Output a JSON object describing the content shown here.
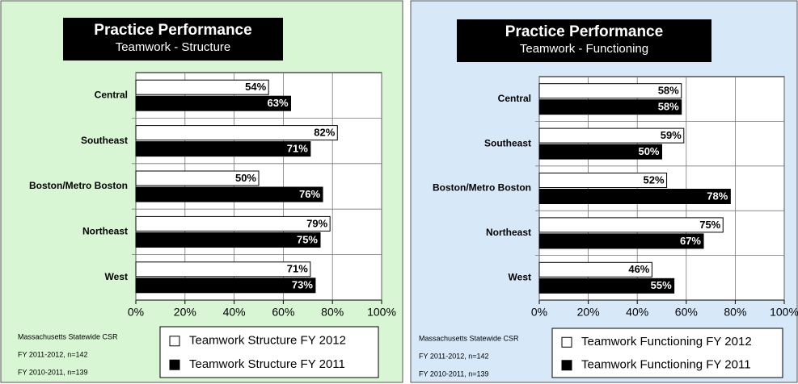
{
  "chart_data": [
    {
      "type": "hbar",
      "title": "Practice Performance",
      "subtitle": "Teamwork - Structure",
      "categories": [
        "Central",
        "Southeast",
        "Boston/Metro Boston",
        "Northeast",
        "West"
      ],
      "series": [
        {
          "name": "Teamwork Structure FY 2012",
          "color": "#ffffff",
          "values": [
            54,
            82,
            50,
            79,
            71
          ],
          "value_labels": [
            "54%",
            "82%",
            "50%",
            "79%",
            "71%"
          ]
        },
        {
          "name": "Teamwork Structure FY 2011",
          "color": "#000000",
          "values": [
            63,
            71,
            76,
            75,
            73
          ],
          "value_labels": [
            "63%",
            "71%",
            "76%",
            "75%",
            "73%"
          ]
        }
      ],
      "xlim": [
        0,
        100
      ],
      "xticks": [
        {
          "value": 0,
          "label": "0%"
        },
        {
          "value": 20,
          "label": "20%"
        },
        {
          "value": 40,
          "label": "40%"
        },
        {
          "value": 60,
          "label": "60%"
        },
        {
          "value": 80,
          "label": "80%"
        },
        {
          "value": 100,
          "label": "100%"
        }
      ],
      "grid": true,
      "background": "#d8f5d4",
      "notes": [
        "Massachusetts Statewide CSR",
        "FY 2011-2012, n=142",
        "FY 2010-2011, n=139"
      ]
    },
    {
      "type": "hbar",
      "title": "Practice Performance",
      "subtitle": "Teamwork - Functioning",
      "categories": [
        "Central",
        "Southeast",
        "Boston/Metro Boston",
        "Northeast",
        "West"
      ],
      "series": [
        {
          "name": "Teamwork Functioning FY 2012",
          "color": "#ffffff",
          "values": [
            58,
            59,
            52,
            75,
            46
          ],
          "value_labels": [
            "58%",
            "59%",
            "52%",
            "75%",
            "46%"
          ]
        },
        {
          "name": "Teamwork Functioning FY 2011",
          "color": "#000000",
          "values": [
            58,
            50,
            78,
            67,
            55
          ],
          "value_labels": [
            "58%",
            "50%",
            "78%",
            "67%",
            "55%"
          ]
        }
      ],
      "xlim": [
        0,
        100
      ],
      "xticks": [
        {
          "value": 0,
          "label": "0%"
        },
        {
          "value": 20,
          "label": "20%"
        },
        {
          "value": 40,
          "label": "40%"
        },
        {
          "value": 60,
          "label": "60%"
        },
        {
          "value": 80,
          "label": "80%"
        },
        {
          "value": 100,
          "label": "100%"
        }
      ],
      "grid": true,
      "background": "#d7e8f9",
      "notes": [
        "Massachusetts Statewide CSR",
        "FY 2011-2012, n=142",
        "FY 2010-2011, n=139"
      ]
    }
  ]
}
